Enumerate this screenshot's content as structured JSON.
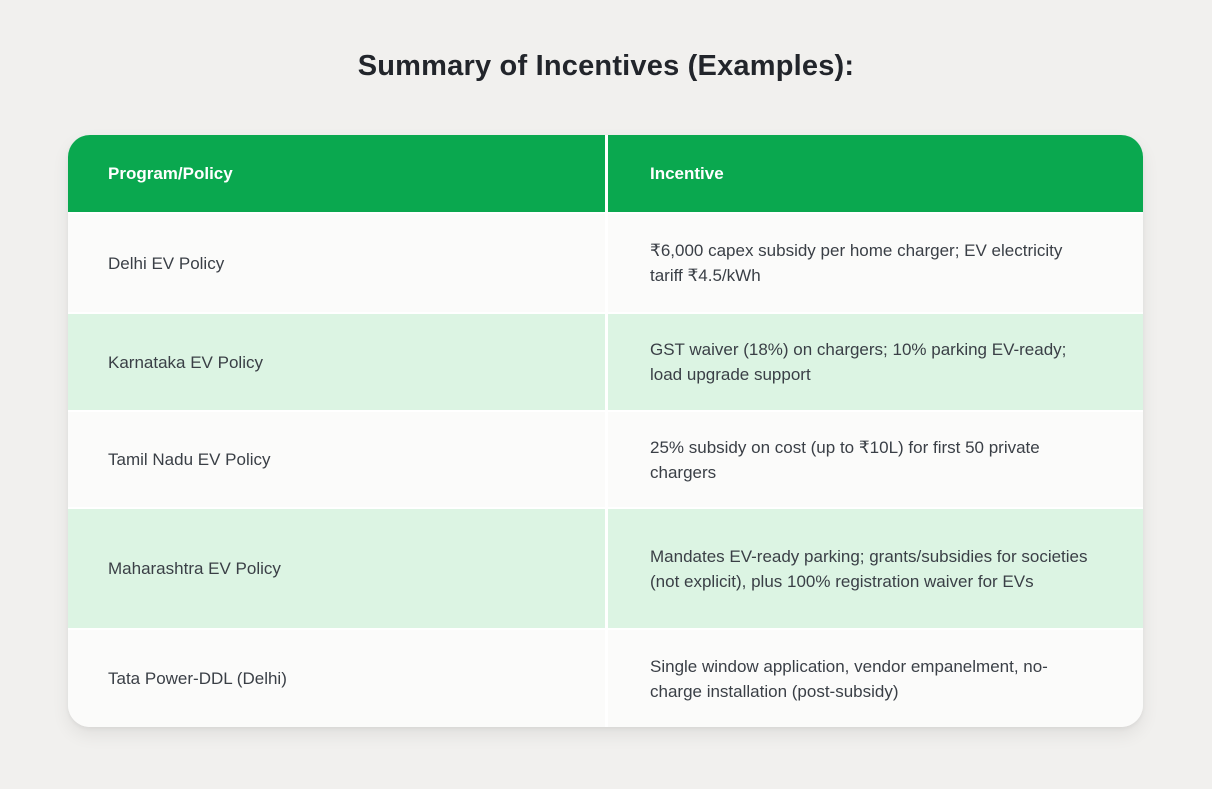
{
  "chart_data": {
    "type": "table",
    "title": "Summary of Incentives (Examples):",
    "columns": [
      "Program/Policy",
      "Incentive"
    ],
    "rows": [
      [
        "Delhi EV Policy",
        "₹6,000 capex subsidy per home charger; EV electricity tariff ₹4.5/kWh"
      ],
      [
        "Karnataka EV Policy",
        "GST waiver (18%) on chargers; 10% parking EV-ready; load upgrade support"
      ],
      [
        "Tamil Nadu EV Policy",
        "25% subsidy on cost (up to ₹10L) for first 50 private chargers"
      ],
      [
        "Maharashtra EV Policy",
        "Mandates EV-ready parking; grants/subsidies for societies (not explicit), plus 100% registration waiver for EVs"
      ],
      [
        "Tata Power-DDL (Delhi)",
        "Single window application, vendor empanelment, no-charge installation (post-subsidy)"
      ]
    ],
    "layout": {
      "legend": "none",
      "grid": "white 2px row separators and 3px column divider",
      "zebra": "alternate rows tinted pale green",
      "colors": {
        "header_bg": "#0AA84F",
        "header_text": "#FFFFFF",
        "row_bg": "#FBFBFA",
        "row_alt_bg": "#DCF4E3",
        "body_text": "#3A3F46",
        "title_text": "#22252B",
        "page_bg": "#F1F0EE"
      }
    }
  }
}
